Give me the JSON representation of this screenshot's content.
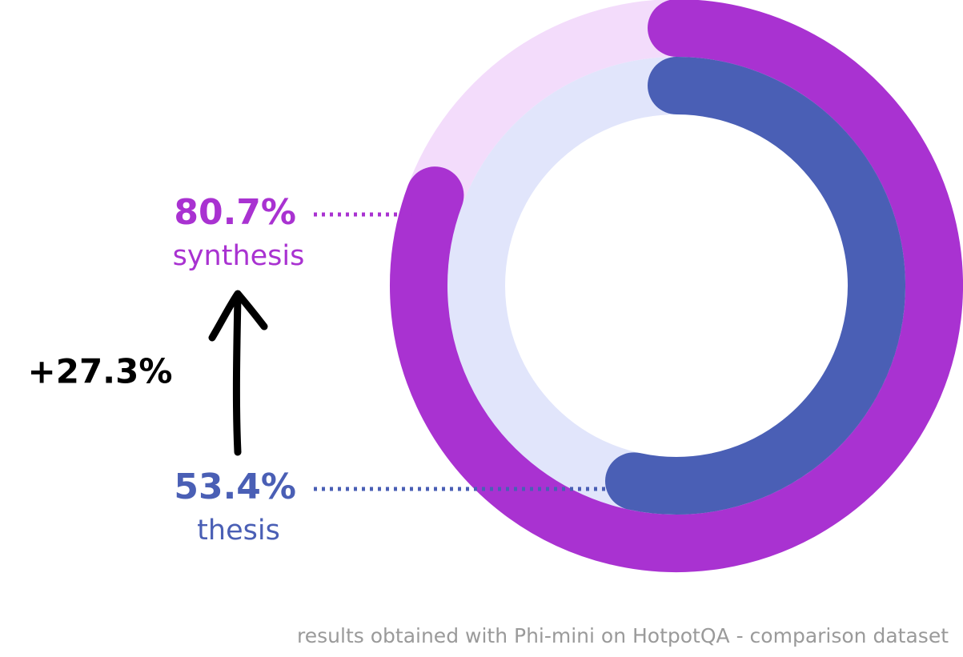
{
  "chart_data": {
    "type": "radial-bar",
    "series": [
      {
        "name": "synthesis",
        "color": "#a932d1",
        "track_color": "#f3dcfb",
        "values": [
          80.7
        ],
        "value_labels": [
          "80.7%"
        ]
      },
      {
        "name": "thesis",
        "color": "#4a5fb5",
        "track_color": "#e1e5fb",
        "values": [
          53.4
        ],
        "value_labels": [
          "53.4%"
        ]
      }
    ],
    "ylim": [
      0,
      100
    ],
    "annotation": "+27.3%",
    "footnote": "results obtained with Phi-mini on HotpotQA - comparison dataset"
  }
}
